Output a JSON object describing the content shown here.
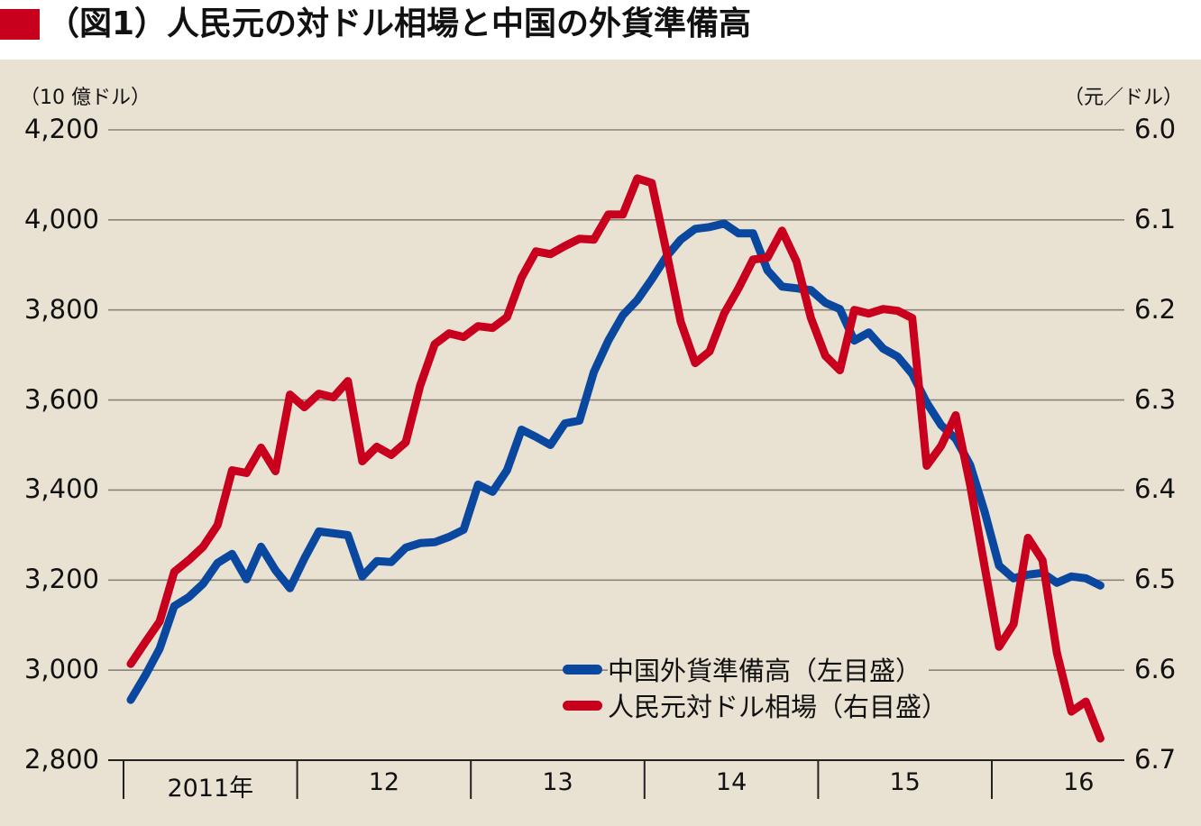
{
  "title": "（図1）人民元の対ドル相場と中国の外貨準備高",
  "colors": {
    "title_mark": "#c8001e",
    "background": "#e9e2d3",
    "grid": "#8a8378",
    "reserves_line": "#0a48a0",
    "cny_line": "#c8001e"
  },
  "axes": {
    "left_unit": "（10 億ドル）",
    "right_unit": "（元／ドル）",
    "left_ticks": [
      "4,200",
      "4,000",
      "3,800",
      "3,600",
      "3,400",
      "3,200",
      "3,000",
      "2,800"
    ],
    "right_ticks": [
      "6.0",
      "6.1",
      "6.2",
      "6.3",
      "6.4",
      "6.5",
      "6.6",
      "6.7"
    ],
    "x_ticks": [
      "2011年",
      "12",
      "13",
      "14",
      "15",
      "16"
    ]
  },
  "legend": {
    "reserves": "中国外貨準備高（左目盛）",
    "cny": "人民元対ドル相場（右目盛）"
  },
  "chart_data": {
    "type": "line",
    "title": "（図1）人民元の対ドル相場と中国の外貨準備高",
    "xlabel": "",
    "x_categories": [
      "2011年",
      "12",
      "13",
      "14",
      "15",
      "16"
    ],
    "x_start": "2011-01",
    "x_frequency": "monthly",
    "grid": true,
    "legend_position": "lower-center-right",
    "y_left": {
      "label": "（10 億ドル）",
      "range": [
        2800,
        4200
      ],
      "ticks": [
        2800,
        3000,
        3200,
        3400,
        3600,
        3800,
        4000,
        4200
      ]
    },
    "y_right": {
      "label": "（元／ドル）",
      "range": [
        6.0,
        6.7
      ],
      "inverted": true,
      "ticks": [
        6.0,
        6.1,
        6.2,
        6.3,
        6.4,
        6.5,
        6.6,
        6.7
      ]
    },
    "series": [
      {
        "name": "中国外貨準備高（左目盛）",
        "axis": "left",
        "color": "#0a48a0",
        "values": [
          2934,
          2988,
          3048,
          3142,
          3162,
          3192,
          3238,
          3258,
          3202,
          3274,
          3222,
          3182,
          3248,
          3308,
          3304,
          3300,
          3208,
          3242,
          3240,
          3272,
          3282,
          3284,
          3296,
          3312,
          3412,
          3396,
          3444,
          3534,
          3518,
          3500,
          3548,
          3554,
          3662,
          3732,
          3788,
          3822,
          3868,
          3918,
          3956,
          3980,
          3984,
          3992,
          3970,
          3970,
          3888,
          3852,
          3848,
          3844,
          3816,
          3802,
          3732,
          3750,
          3714,
          3696,
          3658,
          3594,
          3544,
          3514,
          3456,
          3352,
          3232,
          3204,
          3212,
          3216,
          3194,
          3208,
          3204,
          3188
        ]
      },
      {
        "name": "人民元対ドル相場（右目盛）",
        "axis": "right",
        "color": "#c8001e",
        "values": [
          6.593,
          6.569,
          6.546,
          6.491,
          6.478,
          6.463,
          6.439,
          6.378,
          6.381,
          6.353,
          6.379,
          6.294,
          6.308,
          6.293,
          6.297,
          6.279,
          6.368,
          6.352,
          6.361,
          6.347,
          6.284,
          6.238,
          6.226,
          6.23,
          6.218,
          6.22,
          6.208,
          6.164,
          6.135,
          6.138,
          6.129,
          6.121,
          6.122,
          6.094,
          6.094,
          6.054,
          6.059,
          6.134,
          6.213,
          6.259,
          6.246,
          6.204,
          6.176,
          6.144,
          6.142,
          6.112,
          6.146,
          6.209,
          6.251,
          6.267,
          6.2,
          6.204,
          6.199,
          6.201,
          6.209,
          6.373,
          6.351,
          6.317,
          6.394,
          6.485,
          6.574,
          6.549,
          6.453,
          6.478,
          6.581,
          6.646,
          6.635,
          6.676
        ]
      }
    ]
  }
}
